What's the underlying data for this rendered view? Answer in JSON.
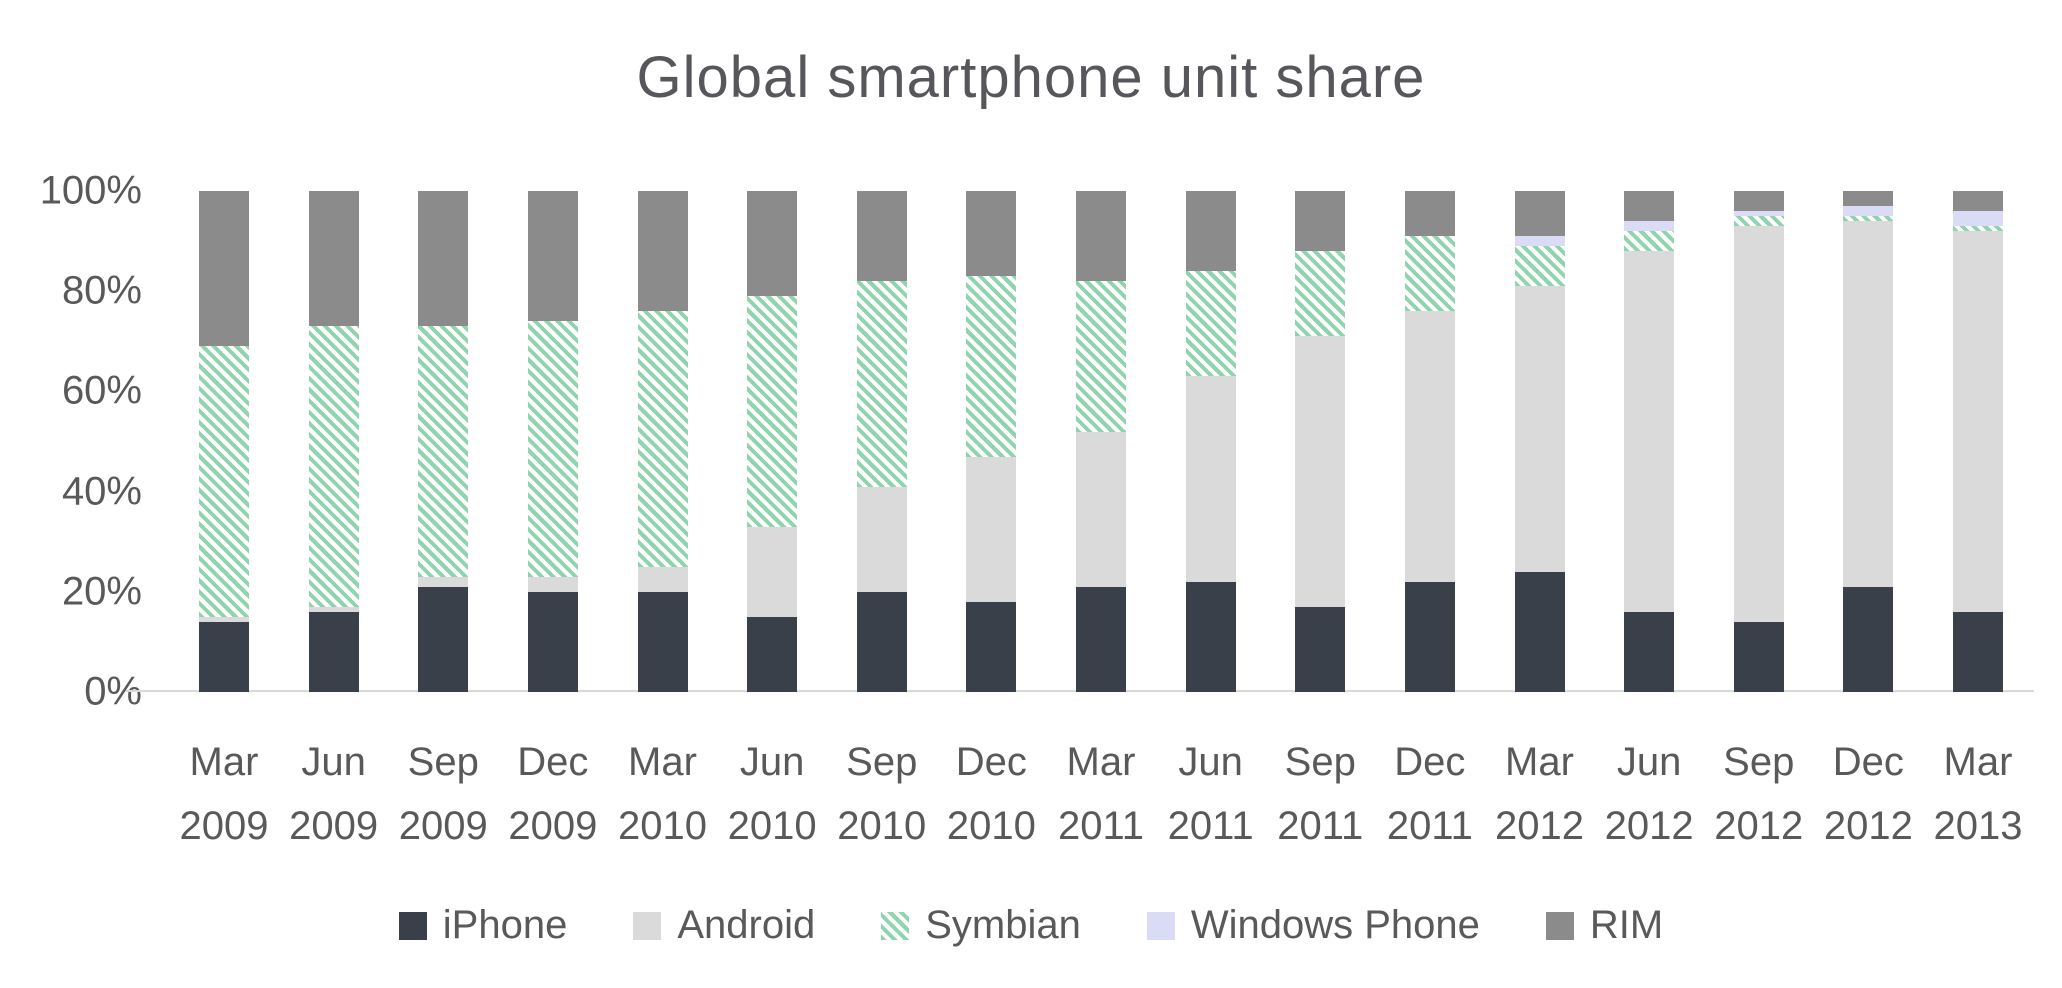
{
  "colors": {
    "background": "#ffffff",
    "title_text": "#57575b",
    "axis_text": "#595959",
    "baseline": "#d9d9d9"
  },
  "chart_data": {
    "type": "bar",
    "stacked": true,
    "percent": true,
    "title": "Global smartphone unit share",
    "xlabel": "",
    "ylabel": "",
    "ylim": [
      0,
      100
    ],
    "grid": false,
    "legend_position": "bottom",
    "y_ticks": [
      "100%",
      "80%",
      "60%",
      "40%",
      "20%",
      "0%"
    ],
    "categories": [
      {
        "month": "Mar",
        "year": "2009"
      },
      {
        "month": "Jun",
        "year": "2009"
      },
      {
        "month": "Sep",
        "year": "2009"
      },
      {
        "month": "Dec",
        "year": "2009"
      },
      {
        "month": "Mar",
        "year": "2010"
      },
      {
        "month": "Jun",
        "year": "2010"
      },
      {
        "month": "Sep",
        "year": "2010"
      },
      {
        "month": "Dec",
        "year": "2010"
      },
      {
        "month": "Mar",
        "year": "2011"
      },
      {
        "month": "Jun",
        "year": "2011"
      },
      {
        "month": "Sep",
        "year": "2011"
      },
      {
        "month": "Dec",
        "year": "2011"
      },
      {
        "month": "Mar",
        "year": "2012"
      },
      {
        "month": "Jun",
        "year": "2012"
      },
      {
        "month": "Sep",
        "year": "2012"
      },
      {
        "month": "Dec",
        "year": "2012"
      },
      {
        "month": "Mar",
        "year": "2013"
      }
    ],
    "series": [
      {
        "name": "iPhone",
        "color": "#39404a",
        "values": [
          14,
          16,
          21,
          20,
          20,
          15,
          20,
          18,
          21,
          22,
          17,
          22,
          24,
          16,
          14,
          21,
          16
        ]
      },
      {
        "name": "Android",
        "color": "#dadada",
        "values": [
          1,
          1,
          2,
          3,
          5,
          18,
          21,
          29,
          31,
          41,
          54,
          54,
          57,
          72,
          79,
          73,
          76
        ]
      },
      {
        "name": "Symbian",
        "pattern": {
          "stripe": "#8fd4ad",
          "bg": "#ffffff"
        },
        "values": [
          54,
          56,
          50,
          51,
          51,
          46,
          41,
          36,
          30,
          21,
          17,
          15,
          8,
          4,
          2,
          1,
          1
        ]
      },
      {
        "name": "Windows Phone",
        "color": "#dadcf5",
        "values": [
          0,
          0,
          0,
          0,
          0,
          0,
          0,
          0,
          0,
          0,
          0,
          0,
          2,
          2,
          1,
          2,
          3
        ]
      },
      {
        "name": "RIM",
        "color": "#8b8b8b",
        "values": [
          31,
          27,
          27,
          26,
          24,
          21,
          18,
          17,
          18,
          16,
          12,
          9,
          9,
          6,
          4,
          3,
          4
        ]
      }
    ]
  }
}
